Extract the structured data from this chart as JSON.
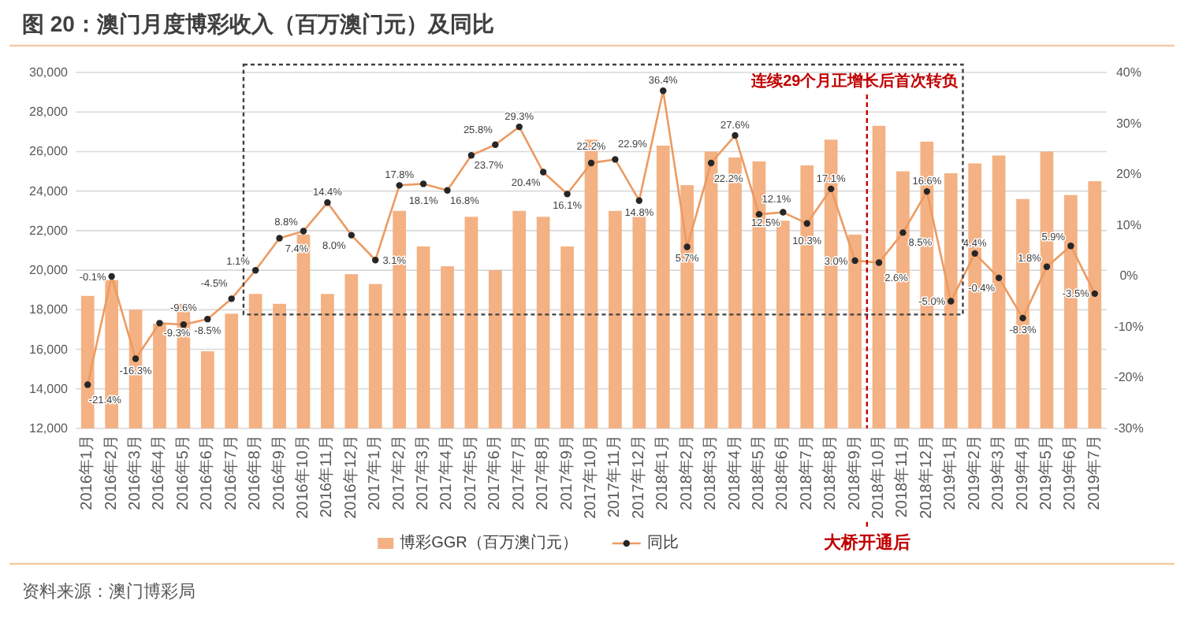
{
  "chart_data": {
    "type": "bar",
    "title": "图 20：澳门月度博彩收入（百万澳门元）及同比",
    "annotations": [
      "连续29个月正增长后首次转负",
      "资料来源：澳门博彩局"
    ],
    "categories": [
      "2016年1月",
      "2016年2月",
      "2016年3月",
      "2016年4月",
      "2016年5月",
      "2016年6月",
      "2016年7月",
      "2016年8月",
      "2016年9月",
      "2016年10月",
      "2016年11月",
      "2016年12月",
      "2017年1月",
      "2017年2月",
      "2017年3月",
      "2017年4月",
      "2017年5月",
      "2017年6月",
      "2017年7月",
      "2017年8月",
      "2017年9月",
      "2017年10月",
      "2017年11月",
      "2017年12月",
      "2018年1月",
      "2018年2月",
      "2018年3月",
      "2018年4月",
      "2018年5月",
      "2018年6月",
      "2018年7月",
      "2018年8月",
      "2018年9月",
      "2018年10月",
      "2018年11月",
      "2018年12月",
      "2019年1月",
      "2019年2月",
      "2019年3月",
      "2019年4月",
      "2019年5月",
      "2019年6月",
      "2019年7月"
    ],
    "series": [
      {
        "name": "博彩GGR（百万澳门元）",
        "color": "#f4b183",
        "values": [
          18700,
          19500,
          18000,
          17300,
          18300,
          15900,
          17800,
          18800,
          18300,
          21800,
          18800,
          19800,
          19300,
          23000,
          21200,
          20200,
          22700,
          20000,
          23000,
          22700,
          21200,
          26600,
          23000,
          22700,
          26300,
          24300,
          26000,
          25700,
          25500,
          22500,
          25300,
          26600,
          21800,
          27300,
          25000,
          26500,
          24900,
          25400,
          25800,
          23600,
          26000,
          23800,
          24500
        ]
      },
      {
        "name": "同比",
        "type": "line",
        "axis": "y2",
        "color": "#ec9b62",
        "values": [
          -21.4,
          -0.1,
          -16.3,
          -9.3,
          -9.6,
          -8.5,
          -4.5,
          1.1,
          7.4,
          8.8,
          14.4,
          8.0,
          3.1,
          17.8,
          18.1,
          16.8,
          23.7,
          25.8,
          29.3,
          20.4,
          16.1,
          22.2,
          22.9,
          14.8,
          36.4,
          5.7,
          22.2,
          27.6,
          12.1,
          12.5,
          10.3,
          17.1,
          3.0,
          2.6,
          8.5,
          16.6,
          -5.0,
          4.4,
          -0.4,
          -8.3,
          1.8,
          5.9,
          -3.5
        ],
        "value_labels": [
          "-21.4%",
          "-0.1%",
          "-16.3%",
          "-9.3%",
          "-9.6%",
          "-8.5%",
          "-4.5%",
          "1.1%",
          "7.4%",
          "8.8%",
          "14.4%",
          "8.0%",
          "3.1%",
          "17.8%",
          "18.1%",
          "16.8%",
          "23.7%",
          "25.8%",
          "29.3%",
          "20.4%",
          "16.1%",
          "22.2%",
          "22.9%",
          "14.8%",
          "36.4%",
          "5.7%",
          "22.2%",
          "27.6%",
          "12.1%",
          "12.5%",
          "10.3%",
          "17.1%",
          "3.0%",
          "2.6%",
          "8.5%",
          "16.6%",
          "-5.0%",
          "4.4%",
          "-0.4%",
          "-8.3%",
          "1.8%",
          "5.9%",
          "-3.5%"
        ]
      }
    ],
    "marker": "circle",
    "ylim": [
      12000,
      30000
    ],
    "yticks": [
      {
        "value": 12000,
        "label": "12,000"
      },
      {
        "value": 14000,
        "label": "14,000"
      },
      {
        "value": 16000,
        "label": "16,000"
      },
      {
        "value": 18000,
        "label": "18,000"
      },
      {
        "value": 20000,
        "label": "20,000"
      },
      {
        "value": 22000,
        "label": "22,000"
      },
      {
        "value": 24000,
        "label": "24,000"
      },
      {
        "value": 26000,
        "label": "26,000"
      },
      {
        "value": 28000,
        "label": "28,000"
      },
      {
        "value": 30000,
        "label": "30,000"
      }
    ],
    "y2lim": [
      -30,
      40
    ],
    "y2ticks": [
      {
        "value": -30,
        "label": "-30%"
      },
      {
        "value": -20,
        "label": "-20%"
      },
      {
        "value": -10,
        "label": "-10%"
      },
      {
        "value": 0,
        "label": "0%"
      },
      {
        "value": 10,
        "label": "10%"
      },
      {
        "value": 20,
        "label": "20%"
      },
      {
        "value": 30,
        "label": "30%"
      },
      {
        "value": 40,
        "label": "40%"
      }
    ],
    "grid": "y",
    "legend": "bottom",
    "ref_lines": [
      {
        "axis": "x",
        "value": "2018年10月",
        "label": "大桥开通后",
        "color": "#c00000",
        "line_style": "dashed"
      }
    ]
  }
}
